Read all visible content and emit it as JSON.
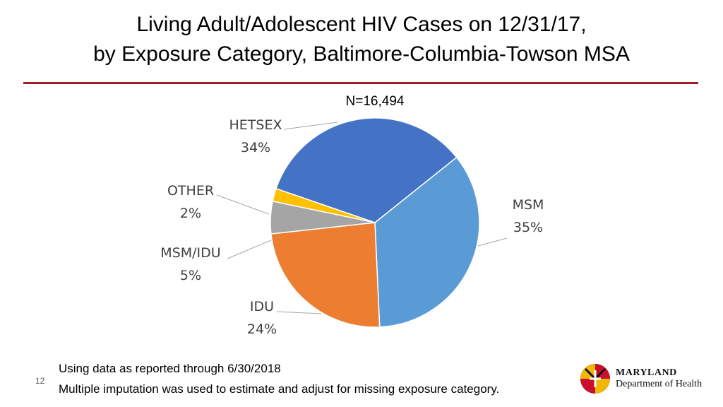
{
  "header": {
    "title_line1": "Living Adult/Adolescent HIV Cases on 12/31/17,",
    "title_line2": "by Exposure Category, Baltimore-Columbia-Towson MSA"
  },
  "chart_data": {
    "type": "pie",
    "subtitle": "N=16,494",
    "slices": [
      {
        "label": "MSM",
        "value": 35,
        "pct_label": "35%",
        "color": "#5b9bd5"
      },
      {
        "label": "IDU",
        "value": 24,
        "pct_label": "24%",
        "color": "#ed7d31"
      },
      {
        "label": "MSM/IDU",
        "value": 5,
        "pct_label": "5%",
        "color": "#a5a5a5"
      },
      {
        "label": "OTHER",
        "value": 2,
        "pct_label": "2%",
        "color": "#ffc000"
      },
      {
        "label": "HETSEX",
        "value": 34,
        "pct_label": "34%",
        "color": "#4472c4"
      }
    ],
    "start_angle_deg": 51.4
  },
  "footer": {
    "note1": "Using data as reported through 6/30/2018",
    "note2": "Multiple imputation was used to estimate and adjust for missing exposure category.",
    "page_number": "12",
    "logo_line1": "MARYLAND",
    "logo_line2": "Department of Health"
  }
}
